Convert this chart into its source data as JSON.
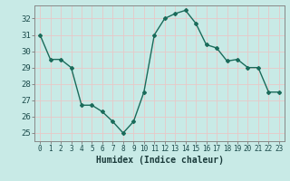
{
  "x": [
    0,
    1,
    2,
    3,
    4,
    5,
    6,
    7,
    8,
    9,
    10,
    11,
    12,
    13,
    14,
    15,
    16,
    17,
    18,
    19,
    20,
    21,
    22,
    23
  ],
  "y": [
    31.0,
    29.5,
    29.5,
    29.0,
    26.7,
    26.7,
    26.3,
    25.7,
    25.0,
    25.7,
    27.5,
    31.0,
    32.0,
    32.3,
    32.5,
    31.7,
    30.4,
    30.2,
    29.4,
    29.5,
    29.0,
    29.0,
    27.5,
    27.5
  ],
  "xlim": [
    -0.5,
    23.5
  ],
  "ylim": [
    24.5,
    32.8
  ],
  "yticks": [
    25,
    26,
    27,
    28,
    29,
    30,
    31,
    32
  ],
  "xticks": [
    0,
    1,
    2,
    3,
    4,
    5,
    6,
    7,
    8,
    9,
    10,
    11,
    12,
    13,
    14,
    15,
    16,
    17,
    18,
    19,
    20,
    21,
    22,
    23
  ],
  "xlabel": "Humidex (Indice chaleur)",
  "line_color": "#1a6b5a",
  "marker": "D",
  "marker_size": 2.0,
  "bg_color": "#c8eae6",
  "grid_color": "#e8c8c8",
  "axes_color": "#888888",
  "tick_label_color": "#1a4a4a",
  "xlabel_color": "#1a3a3a",
  "xlabel_fontsize": 7.0,
  "ytick_fontsize": 6.5,
  "xtick_fontsize": 5.5
}
